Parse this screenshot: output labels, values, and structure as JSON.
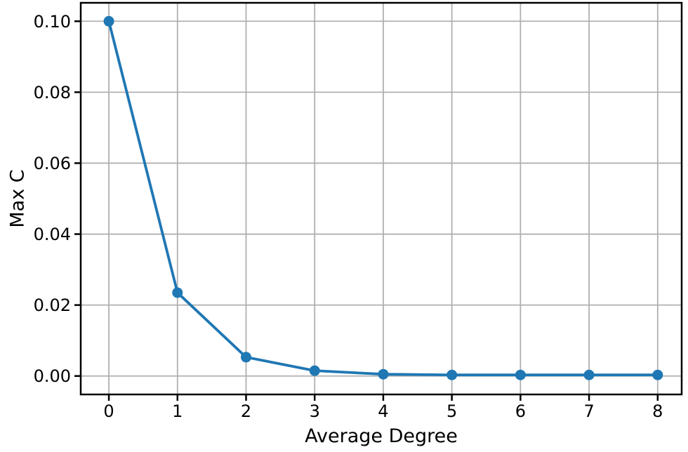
{
  "chart_data": {
    "type": "line",
    "title": "",
    "xlabel": "Average Degree",
    "ylabel": "Max C",
    "x": [
      0,
      1,
      2,
      3,
      4,
      5,
      6,
      7,
      8
    ],
    "series": [
      {
        "name": "Max C",
        "values": [
          0.1,
          0.0235,
          0.0053,
          0.0015,
          0.0005,
          0.0003,
          0.0003,
          0.0003,
          0.0003
        ],
        "color": "#1f77b4",
        "marker": "circle"
      }
    ],
    "xticks": [
      0,
      1,
      2,
      3,
      4,
      5,
      6,
      7,
      8
    ],
    "xtick_labels": [
      "0",
      "1",
      "2",
      "3",
      "4",
      "5",
      "6",
      "7",
      "8"
    ],
    "yticks": [
      0.0,
      0.02,
      0.04,
      0.06,
      0.08,
      0.1
    ],
    "ytick_labels": [
      "0.00",
      "0.02",
      "0.04",
      "0.06",
      "0.08",
      "0.10"
    ],
    "xlim": [
      -0.41,
      8.35
    ],
    "ylim": [
      -0.0052,
      0.1052
    ],
    "grid": true,
    "legend": "none",
    "grid_color": "#b0b0b0",
    "axis_color": "#000000",
    "background": "#ffffff"
  }
}
